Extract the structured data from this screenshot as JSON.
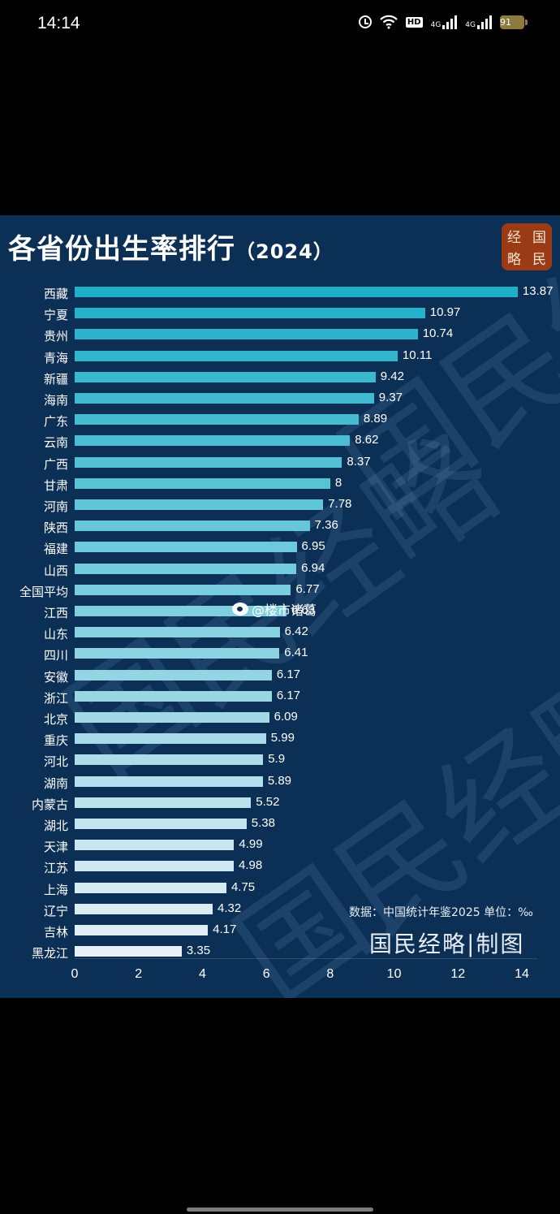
{
  "status_bar": {
    "time": "14:14",
    "icons": [
      "alarm-icon",
      "wifi-icon",
      "hd-volte-icon",
      "signal-4g-icon",
      "signal-4g-icon",
      "battery-icon"
    ],
    "hd_label": "HD",
    "network_label": "4G",
    "battery": "91"
  },
  "chart_card": {
    "title": "各省份出生率排行",
    "title_year": "（2024）",
    "logo_chars": [
      "经",
      "国",
      "略",
      "民"
    ],
    "source_note": "数据：中国统计年鉴2025 单位：‰",
    "maker": "国民经略|制图",
    "watermark_text": "国民经略",
    "weibo_handle": "@楼市诸葛"
  },
  "chart_data": {
    "type": "bar",
    "orientation": "horizontal",
    "title": "各省份出生率排行（2024）",
    "xlabel": "",
    "ylabel": "",
    "unit": "‰",
    "source": "中国统计年鉴2025",
    "xlim": [
      0,
      14
    ],
    "xticks": [
      "0",
      "2",
      "4",
      "6",
      "8",
      "10",
      "12",
      "14"
    ],
    "grid": false,
    "legend": null,
    "categories": [
      "西藏",
      "宁夏",
      "贵州",
      "青海",
      "新疆",
      "海南",
      "广东",
      "云南",
      "广西",
      "甘肃",
      "河南",
      "陕西",
      "福建",
      "山西",
      "全国平均",
      "江西",
      "山东",
      "四川",
      "安徽",
      "浙江",
      "北京",
      "重庆",
      "河北",
      "湖南",
      "内蒙古",
      "湖北",
      "天津",
      "江苏",
      "上海",
      "辽宁",
      "吉林",
      "黑龙江"
    ],
    "values": [
      13.87,
      10.97,
      10.74,
      10.11,
      9.42,
      9.37,
      8.89,
      8.62,
      8.37,
      8,
      7.78,
      7.36,
      6.95,
      6.94,
      6.77,
      6.63,
      6.42,
      6.41,
      6.17,
      6.17,
      6.09,
      5.99,
      5.9,
      5.89,
      5.52,
      5.38,
      4.99,
      4.98,
      4.75,
      4.32,
      4.17,
      3.35
    ],
    "value_labels": [
      "13.87",
      "10.97",
      "10.74",
      "10.11",
      "9.42",
      "9.37",
      "8.89",
      "8.62",
      "8.37",
      "8",
      "7.78",
      "7.36",
      "6.95",
      "6.94",
      "6.77",
      "6.63",
      "6.42",
      "6.41",
      "6.17",
      "6.17",
      "6.09",
      "5.99",
      "5.9",
      "5.89",
      "5.52",
      "5.38",
      "4.99",
      "4.98",
      "4.75",
      "4.32",
      "4.17",
      "3.35"
    ],
    "colors": {
      "background": "#0b2f55",
      "bar_top": "#1fb0c8",
      "bar_bottom": "#e8f0f8",
      "logo": "#9a3b16"
    }
  }
}
